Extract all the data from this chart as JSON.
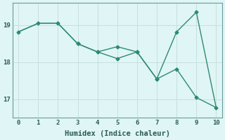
{
  "line1_x": [
    0,
    1,
    2,
    3,
    4,
    5,
    6,
    7,
    8,
    9,
    10
  ],
  "line1_y": [
    18.82,
    19.05,
    19.05,
    18.5,
    18.28,
    18.42,
    18.28,
    17.55,
    18.82,
    19.35,
    16.78
  ],
  "line2_x": [
    0,
    1,
    2,
    3,
    4,
    5,
    6,
    7,
    8,
    9,
    10
  ],
  "line2_y": [
    18.82,
    19.05,
    19.05,
    18.5,
    18.28,
    18.1,
    18.28,
    17.55,
    17.82,
    17.05,
    16.78
  ],
  "color": "#2e8b70",
  "bg_color": "#e0f5f5",
  "grid_color": "#c8e0e0",
  "xlabel": "Humidex (Indice chaleur)",
  "xlim": [
    -0.3,
    10.3
  ],
  "ylim": [
    16.5,
    19.6
  ],
  "yticks": [
    17,
    18,
    19
  ],
  "xticks": [
    0,
    1,
    2,
    3,
    4,
    5,
    6,
    7,
    8,
    9,
    10
  ],
  "marker": "D",
  "markersize": 2.5,
  "linewidth": 1.0,
  "line1_markers": [
    0,
    1,
    2,
    3,
    4,
    5,
    6,
    7,
    8,
    9
  ],
  "line2_markers": [
    3,
    4,
    5,
    6,
    7,
    8,
    9,
    10
  ]
}
